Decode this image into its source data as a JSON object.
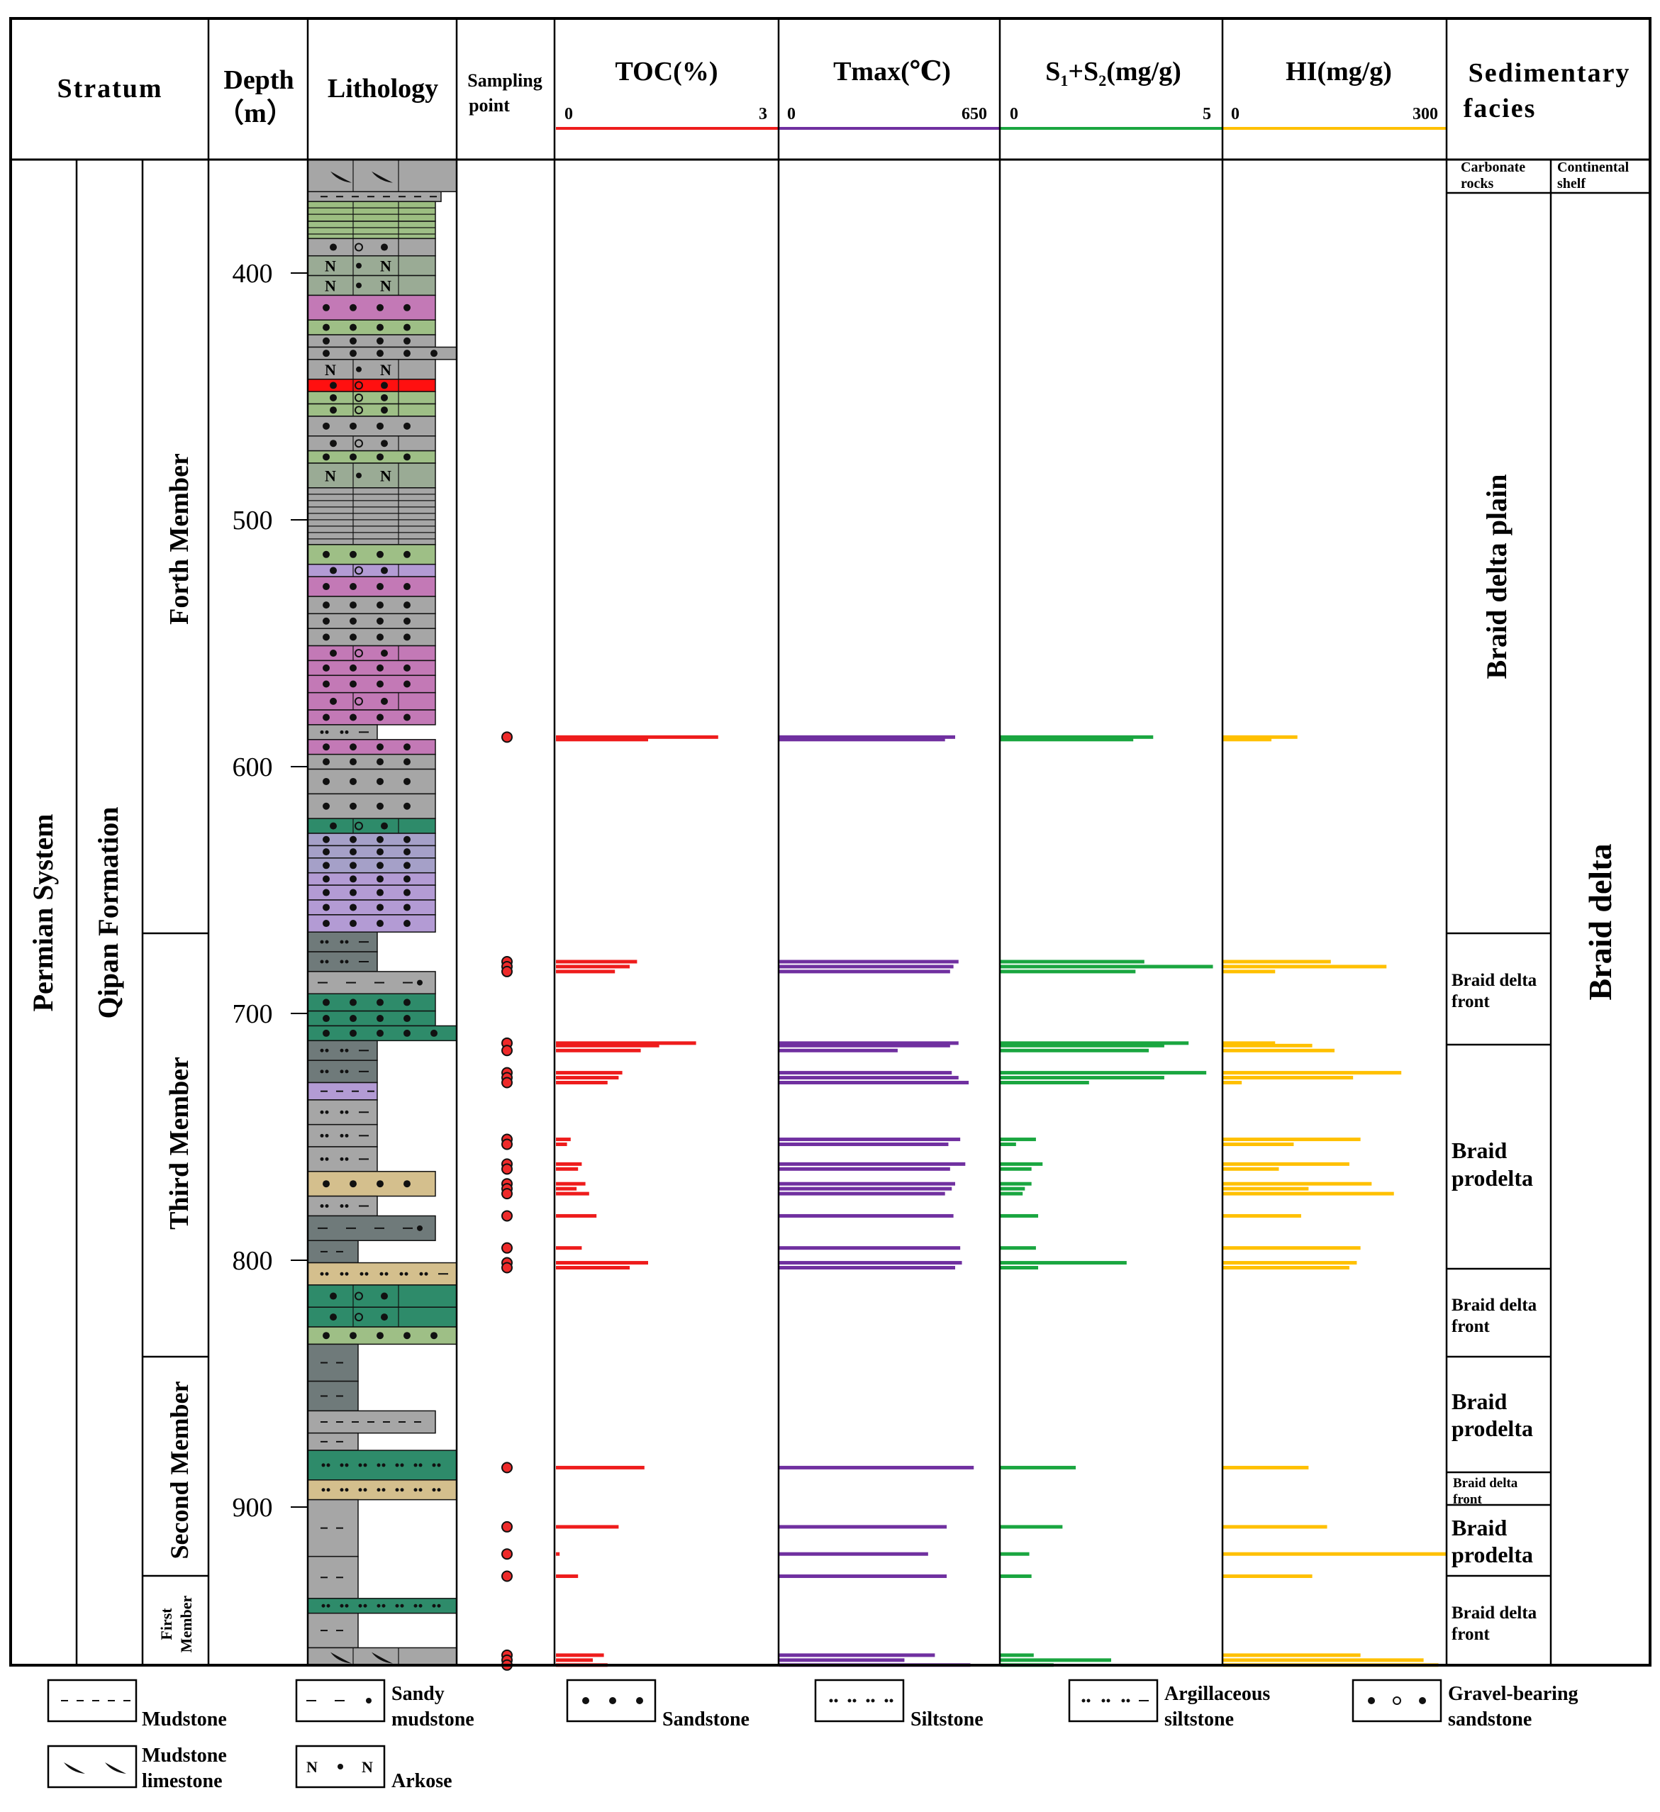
{
  "headers": {
    "stratum": "Stratum",
    "depth_line1": "Depth",
    "depth_line2": "（m）",
    "lithology": "Lithology",
    "sampling_line1": "Sampling",
    "sampling_line2": "point",
    "toc": "TOC(%)",
    "tmax": "Tmax(℃)",
    "s1s2_prefix": "S",
    "s1s2_sub1": "1",
    "s1s2_mid": "+S",
    "s1s2_sub2": "2",
    "s1s2_suffix": "(mg/g)",
    "hi": "HI(mg/g)",
    "facies_line1": "Sedimentary",
    "facies_line2": "facies"
  },
  "scales": {
    "toc": {
      "min": "0",
      "max": "3",
      "color": "#ee1c1c"
    },
    "tmax": {
      "min": "0",
      "max": "650",
      "color": "#7030a0"
    },
    "s1s2": {
      "min": "0",
      "max": "5",
      "color": "#1aa640"
    },
    "hi": {
      "min": "0",
      "max": "300",
      "color": "#ffc000"
    }
  },
  "stratum": {
    "system": "Permian System",
    "formation": "Qipan Formation",
    "members": [
      {
        "name": "Forth Member",
        "top": 355,
        "bottom": 668
      },
      {
        "name": "Third Member",
        "top": 668,
        "bottom": 840
      },
      {
        "name": "Second Member",
        "top": 840,
        "bottom": 930
      },
      {
        "name_line1": "First",
        "name_line2": "Member",
        "top": 930,
        "bottom": 965
      }
    ]
  },
  "depth_ticks": [
    "400",
    "500",
    "600",
    "700",
    "800",
    "900"
  ],
  "facies_small": {
    "carbonate_line1": "Carbonate",
    "carbonate_line2": "rocks",
    "shelf_line1": "Continental",
    "shelf_line2": "shelf"
  },
  "facies": [
    {
      "line1": "Braid delta plain",
      "line2": "",
      "top": 369,
      "bottom": 668
    },
    {
      "line1": "Braid delta",
      "line2": "front",
      "top": 668,
      "bottom": 713
    },
    {
      "line1": "Braid",
      "line2": "prodelta",
      "top": 713,
      "bottom": 805
    },
    {
      "line1": "Braid delta",
      "line2": "front",
      "top": 805,
      "bottom": 840
    },
    {
      "line1": "Braid",
      "line2": "prodelta",
      "top": 840,
      "bottom": 887
    },
    {
      "line1": "Braid delta",
      "line2": "front",
      "top": 887,
      "bottom": 900
    },
    {
      "line1": "Braid",
      "line2": "prodelta",
      "top": 900,
      "bottom": 930
    },
    {
      "line1": "Braid delta",
      "line2": "front",
      "top": 930,
      "bottom": 965
    }
  ],
  "big_facies": "Braid delta",
  "legend": [
    {
      "label1": "Mudstone",
      "label2": "",
      "pattern": "mud"
    },
    {
      "label1": "Sandy",
      "label2": "mudstone",
      "pattern": "sandymud"
    },
    {
      "label1": "Sandstone",
      "label2": "",
      "pattern": "sand"
    },
    {
      "label1": "Siltstone",
      "label2": "",
      "pattern": "silt"
    },
    {
      "label1": "Argillaceous",
      "label2": "siltstone",
      "pattern": "argsilt"
    },
    {
      "label1": "Gravel-bearing",
      "label2": "sandstone",
      "pattern": "gravel"
    },
    {
      "label1": "Mudstone",
      "label2": "limestone",
      "pattern": "limestone"
    },
    {
      "label1": "Arkose",
      "label2": "",
      "pattern": "arkose"
    }
  ],
  "chart_data": {
    "type": "bar",
    "orientation": "horizontal",
    "depth_unit": "m",
    "depth_range": [
      355,
      965
    ],
    "sample_depths": [
      589,
      590,
      680,
      682,
      684,
      713,
      714,
      716,
      725,
      727,
      729,
      752,
      754,
      762,
      764,
      770,
      772,
      774,
      783,
      796,
      802,
      804,
      885,
      909,
      920,
      929,
      961,
      963,
      965
    ],
    "series": [
      {
        "name": "TOC(%)",
        "range": [
          0,
          3
        ],
        "values": [
          2.2,
          1.25,
          1.1,
          1.0,
          0.8,
          1.9,
          1.4,
          1.15,
          0.9,
          0.85,
          0.7,
          0.2,
          0.15,
          0.35,
          0.3,
          0.4,
          0.28,
          0.45,
          0.55,
          0.35,
          1.25,
          1.0,
          1.2,
          0.85,
          0.05,
          0.3,
          0.65,
          0.5,
          0.7
        ]
      },
      {
        "name": "Tmax(℃)",
        "range": [
          0,
          650
        ],
        "values": [
          520,
          490,
          530,
          515,
          505,
          530,
          505,
          350,
          510,
          530,
          560,
          535,
          500,
          550,
          505,
          520,
          510,
          490,
          515,
          535,
          540,
          520,
          575,
          495,
          440,
          495,
          460,
          370,
          565
        ]
      },
      {
        "name": "S1+S2(mg/g)",
        "range": [
          0,
          5
        ],
        "values": [
          3.45,
          3.0,
          3.25,
          4.8,
          3.05,
          4.25,
          3.7,
          3.35,
          4.65,
          3.7,
          2.0,
          0.8,
          0.35,
          0.95,
          0.7,
          0.7,
          0.55,
          0.5,
          0.85,
          0.8,
          2.85,
          0.85,
          1.7,
          1.4,
          0.65,
          0.7,
          0.75,
          2.5,
          1.2
        ]
      },
      {
        "name": "HI(mg/g)",
        "range": [
          0,
          300
        ],
        "values": [
          100,
          65,
          145,
          220,
          70,
          70,
          120,
          150,
          240,
          175,
          25,
          185,
          95,
          170,
          75,
          200,
          115,
          230,
          105,
          185,
          180,
          170,
          115,
          140,
          300,
          120,
          185,
          270,
          290
        ]
      }
    ]
  }
}
